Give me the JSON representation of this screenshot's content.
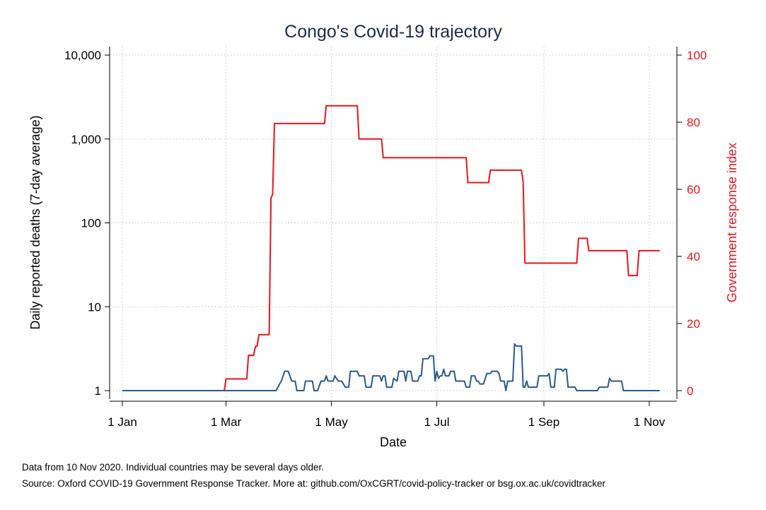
{
  "chart_data": {
    "type": "line",
    "title": "Congo's Covid-19 trajectory",
    "xlabel": "Date",
    "ylabel_left": "Daily reported deaths (7-day average)",
    "ylabel_right": "Government response index",
    "x_tick_labels": [
      "1 Jan",
      "1 Mar",
      "1 May",
      "1 Jul",
      "1 Sep",
      "1 Nov"
    ],
    "x_tick_dates": [
      "2020-01-01",
      "2020-03-01",
      "2020-05-01",
      "2020-07-01",
      "2020-09-01",
      "2020-11-01"
    ],
    "xlim": [
      "2020-01-01",
      "2020-11-10"
    ],
    "y_left_scale": "log",
    "y_left_ticks": [
      1,
      10,
      100,
      1000,
      10000
    ],
    "y_left_tick_labels": [
      "1",
      "10",
      "100",
      "1,000",
      "10,000"
    ],
    "y_left_lim": [
      1,
      10000
    ],
    "y_right_ticks": [
      0,
      20,
      40,
      60,
      80,
      100
    ],
    "y_right_tick_labels": [
      "0",
      "20",
      "40",
      "60",
      "80",
      "100"
    ],
    "y_right_lim": [
      0,
      100
    ],
    "grid": true,
    "colors": {
      "deaths": "#2a5b8a",
      "response": "#e8161b",
      "title": "#1a2b4c",
      "grid": "#c8c8c8"
    },
    "series": [
      {
        "axis": "right",
        "color": "#e8161b",
        "points": [
          [
            "2020-01-01",
            0
          ],
          [
            "2020-02-29",
            0
          ],
          [
            "2020-03-01",
            3.5
          ],
          [
            "2020-03-13",
            3.5
          ],
          [
            "2020-03-14",
            10.5
          ],
          [
            "2020-03-17",
            10.5
          ],
          [
            "2020-03-18",
            13.2
          ],
          [
            "2020-03-19",
            13.2
          ],
          [
            "2020-03-20",
            16.7
          ],
          [
            "2020-03-26",
            16.7
          ],
          [
            "2020-03-27",
            57.4
          ],
          [
            "2020-03-28",
            58.5
          ],
          [
            "2020-03-29",
            79.6
          ],
          [
            "2020-04-27",
            79.6
          ],
          [
            "2020-04-28",
            84.9
          ],
          [
            "2020-05-16",
            84.9
          ],
          [
            "2020-05-17",
            75.0
          ],
          [
            "2020-05-30",
            75.0
          ],
          [
            "2020-05-31",
            69.4
          ],
          [
            "2020-07-18",
            69.4
          ],
          [
            "2020-07-19",
            62.0
          ],
          [
            "2020-07-31",
            62.0
          ],
          [
            "2020-08-01",
            65.7
          ],
          [
            "2020-08-19",
            65.7
          ],
          [
            "2020-08-20",
            62.0
          ],
          [
            "2020-08-21",
            38.0
          ],
          [
            "2020-09-20",
            38.0
          ],
          [
            "2020-09-21",
            45.4
          ],
          [
            "2020-09-26",
            45.4
          ],
          [
            "2020-09-27",
            41.7
          ],
          [
            "2020-10-19",
            41.7
          ],
          [
            "2020-10-20",
            34.3
          ],
          [
            "2020-10-25",
            34.3
          ],
          [
            "2020-10-26",
            41.7
          ],
          [
            "2020-11-07",
            41.7
          ]
        ]
      },
      {
        "axis": "left",
        "color": "#2a5b8a",
        "points": [
          [
            "2020-01-01",
            1
          ],
          [
            "2020-03-30",
            1
          ],
          [
            "2020-04-01",
            1.2
          ],
          [
            "2020-04-02",
            1.3
          ],
          [
            "2020-04-04",
            1.7
          ],
          [
            "2020-04-06",
            1.7
          ],
          [
            "2020-04-08",
            1.3
          ],
          [
            "2020-04-10",
            1.3
          ],
          [
            "2020-04-11",
            1
          ],
          [
            "2020-04-15",
            1
          ],
          [
            "2020-04-16",
            1.3
          ],
          [
            "2020-04-20",
            1.3
          ],
          [
            "2020-04-21",
            1
          ],
          [
            "2020-04-23",
            1
          ],
          [
            "2020-04-25",
            1.3
          ],
          [
            "2020-04-27",
            1.3
          ],
          [
            "2020-04-28",
            1.5
          ],
          [
            "2020-04-29",
            1.3
          ],
          [
            "2020-05-02",
            1.3
          ],
          [
            "2020-05-03",
            1.5
          ],
          [
            "2020-05-05",
            1.3
          ],
          [
            "2020-05-07",
            1.3
          ],
          [
            "2020-05-09",
            1.1
          ],
          [
            "2020-05-11",
            1.1
          ],
          [
            "2020-05-12",
            1.7
          ],
          [
            "2020-05-16",
            1.7
          ],
          [
            "2020-05-17",
            1.5
          ],
          [
            "2020-05-20",
            1.5
          ],
          [
            "2020-05-21",
            1.1
          ],
          [
            "2020-05-24",
            1.1
          ],
          [
            "2020-05-25",
            1.5
          ],
          [
            "2020-05-29",
            1.5
          ],
          [
            "2020-05-30",
            1.3
          ],
          [
            "2020-05-31",
            1.5
          ],
          [
            "2020-06-01",
            1.5
          ],
          [
            "2020-06-02",
            1.1
          ],
          [
            "2020-06-05",
            1.1
          ],
          [
            "2020-06-06",
            1.4
          ],
          [
            "2020-06-08",
            1.3
          ],
          [
            "2020-06-09",
            1.7
          ],
          [
            "2020-06-12",
            1.7
          ],
          [
            "2020-06-13",
            1.3
          ],
          [
            "2020-06-14",
            1.7
          ],
          [
            "2020-06-16",
            1.7
          ],
          [
            "2020-06-17",
            1.3
          ],
          [
            "2020-06-20",
            1.3
          ],
          [
            "2020-06-21",
            1.5
          ],
          [
            "2020-06-22",
            1.5
          ],
          [
            "2020-06-23",
            2.4
          ],
          [
            "2020-06-26",
            2.4
          ],
          [
            "2020-06-27",
            2.6
          ],
          [
            "2020-06-29",
            2.6
          ],
          [
            "2020-06-30",
            1.3
          ],
          [
            "2020-07-01",
            1.7
          ],
          [
            "2020-07-02",
            1.4
          ],
          [
            "2020-07-03",
            1.5
          ],
          [
            "2020-07-04",
            1.5
          ],
          [
            "2020-07-05",
            1.8
          ],
          [
            "2020-07-06",
            1.5
          ],
          [
            "2020-07-08",
            1.5
          ],
          [
            "2020-07-09",
            1.7
          ],
          [
            "2020-07-11",
            1.7
          ],
          [
            "2020-07-12",
            1.3
          ],
          [
            "2020-07-14",
            1.3
          ],
          [
            "2020-07-15",
            1.3
          ],
          [
            "2020-07-17",
            1.3
          ],
          [
            "2020-07-18",
            1.1
          ],
          [
            "2020-07-20",
            1.1
          ],
          [
            "2020-07-21",
            1.5
          ],
          [
            "2020-07-23",
            1.5
          ],
          [
            "2020-07-24",
            1.3
          ],
          [
            "2020-07-25",
            1.3
          ],
          [
            "2020-07-26",
            1.2
          ],
          [
            "2020-07-28",
            1.2
          ],
          [
            "2020-07-30",
            1.6
          ],
          [
            "2020-08-01",
            1.6
          ],
          [
            "2020-08-02",
            1.7
          ],
          [
            "2020-08-05",
            1.7
          ],
          [
            "2020-08-06",
            1.6
          ],
          [
            "2020-08-07",
            1.3
          ],
          [
            "2020-08-08",
            1.3
          ],
          [
            "2020-08-09",
            1.3
          ],
          [
            "2020-08-10",
            1
          ],
          [
            "2020-08-11",
            1.3
          ],
          [
            "2020-08-14",
            1.3
          ],
          [
            "2020-08-15",
            3.6
          ],
          [
            "2020-08-16",
            3.4
          ],
          [
            "2020-08-19",
            3.4
          ],
          [
            "2020-08-20",
            1.1
          ],
          [
            "2020-08-21",
            1.1
          ],
          [
            "2020-08-22",
            1.3
          ],
          [
            "2020-08-23",
            1.1
          ],
          [
            "2020-08-28",
            1.1
          ],
          [
            "2020-08-29",
            1.5
          ],
          [
            "2020-09-03",
            1.5
          ],
          [
            "2020-09-04",
            1.6
          ],
          [
            "2020-09-05",
            1.1
          ],
          [
            "2020-09-07",
            1.1
          ],
          [
            "2020-09-08",
            1.8
          ],
          [
            "2020-09-11",
            1.8
          ],
          [
            "2020-09-12",
            1.7
          ],
          [
            "2020-09-13",
            1.8
          ],
          [
            "2020-09-14",
            1.8
          ],
          [
            "2020-09-15",
            1.1
          ],
          [
            "2020-09-19",
            1.1
          ],
          [
            "2020-09-20",
            1
          ],
          [
            "2020-10-02",
            1
          ],
          [
            "2020-10-03",
            1.1
          ],
          [
            "2020-10-08",
            1.1
          ],
          [
            "2020-10-09",
            1.4
          ],
          [
            "2020-10-10",
            1.3
          ],
          [
            "2020-10-16",
            1.3
          ],
          [
            "2020-10-17",
            1
          ],
          [
            "2020-11-07",
            1
          ]
        ]
      }
    ]
  },
  "notes": {
    "line1": "Data from 10 Nov 2020. Individual countries may be several days older.",
    "line2": "Source: Oxford COVID-19 Government Response Tracker. More at: github.com/OxCGRT/covid-policy-tracker or bsg.ox.ac.uk/covidtracker"
  }
}
